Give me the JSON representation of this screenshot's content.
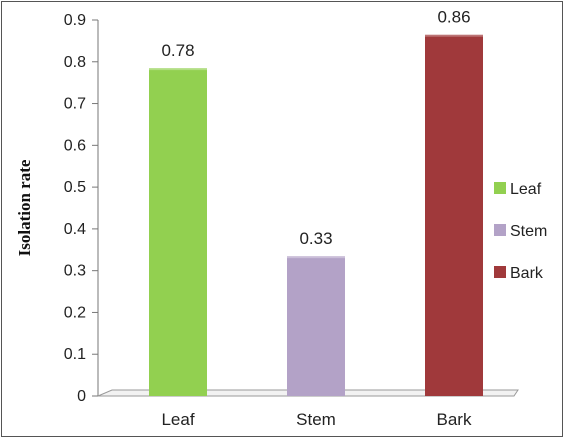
{
  "chart_data": {
    "type": "bar",
    "title": "",
    "xlabel": "",
    "ylabel": "Isolation rate",
    "categories": [
      "Leaf",
      "Stem",
      "Bark"
    ],
    "values": [
      0.78,
      0.33,
      0.86
    ],
    "data_labels": [
      "0.78",
      "0.33",
      "0.86"
    ],
    "colors": [
      "#92D050",
      "#B3A2C7",
      "#A0393B"
    ],
    "ylim": [
      0,
      0.9
    ],
    "yticks": [
      "0",
      "0.1",
      "0.2",
      "0.3",
      "0.4",
      "0.5",
      "0.6",
      "0.7",
      "0.8",
      "0.9"
    ],
    "grid": false,
    "legend": {
      "position": "right",
      "entries": [
        {
          "name": "Leaf",
          "color": "#92D050"
        },
        {
          "name": "Stem",
          "color": "#B3A2C7"
        },
        {
          "name": "Bark",
          "color": "#A0393B"
        }
      ]
    }
  }
}
